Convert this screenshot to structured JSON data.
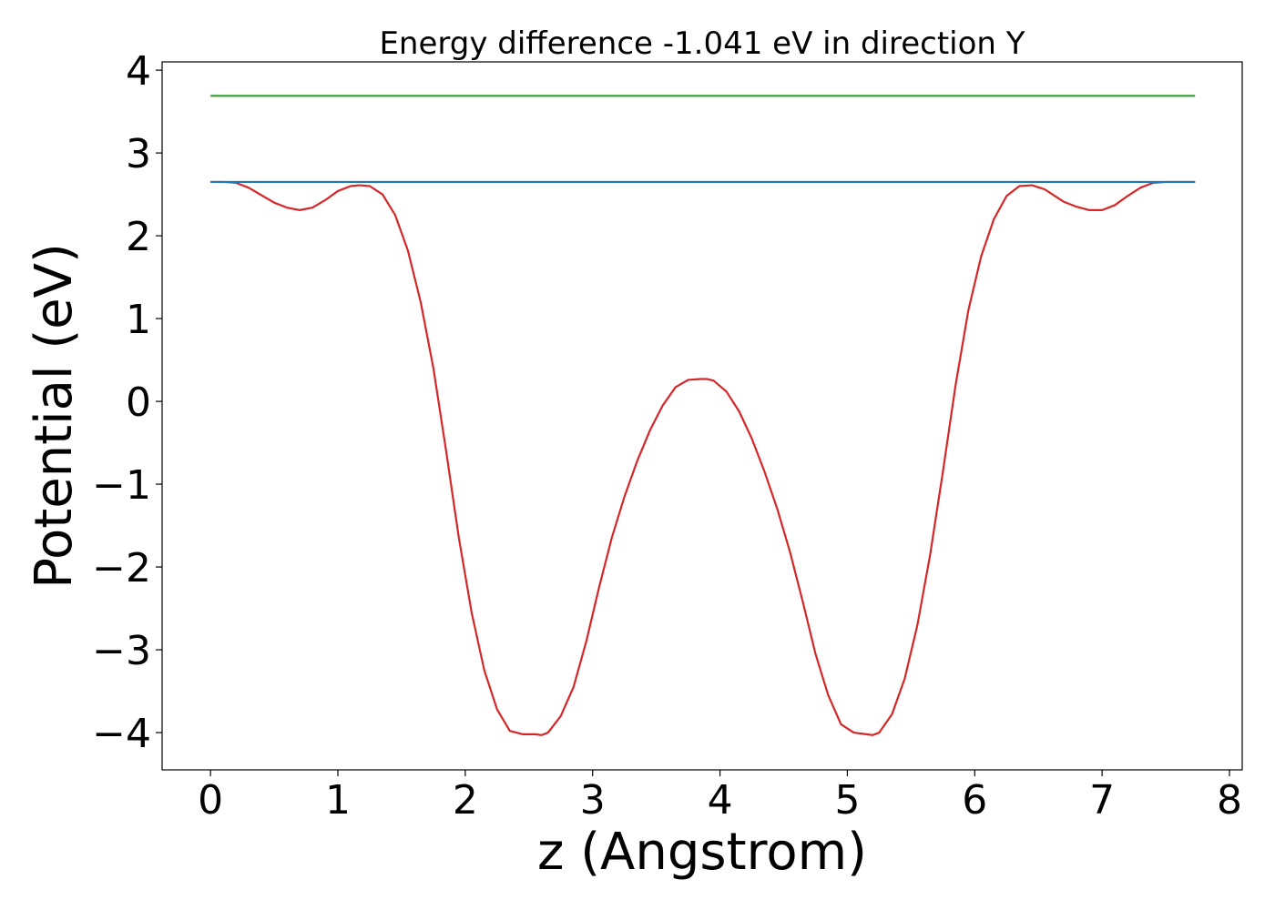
{
  "chart_data": {
    "type": "line",
    "title": "Energy difference -1.041 eV in direction Y",
    "xlabel": "z (Angstrom)",
    "ylabel": "Potential (eV)",
    "xlim": [
      -0.38,
      8.1
    ],
    "ylim": [
      -4.45,
      4.1
    ],
    "xticks": [
      0,
      1,
      2,
      3,
      4,
      5,
      6,
      7,
      8
    ],
    "yticks": [
      -4,
      -3,
      -2,
      -1,
      0,
      1,
      2,
      3,
      4
    ],
    "xtick_labels": [
      "0",
      "1",
      "2",
      "3",
      "4",
      "5",
      "6",
      "7",
      "8"
    ],
    "ytick_labels": [
      "−4",
      "−3",
      "−2",
      "−1",
      "0",
      "1",
      "2",
      "3",
      "4"
    ],
    "grid": false,
    "series": [
      {
        "color": "#d62728",
        "x": [
          0.0,
          0.1,
          0.2,
          0.3,
          0.4,
          0.5,
          0.6,
          0.7,
          0.8,
          0.9,
          1.0,
          1.1,
          1.17,
          1.25,
          1.35,
          1.45,
          1.55,
          1.65,
          1.75,
          1.85,
          1.95,
          2.05,
          2.15,
          2.25,
          2.35,
          2.45,
          2.55,
          2.6,
          2.65,
          2.75,
          2.85,
          2.95,
          3.05,
          3.15,
          3.25,
          3.35,
          3.45,
          3.55,
          3.65,
          3.75,
          3.85,
          3.9,
          3.95,
          4.05,
          4.15,
          4.25,
          4.35,
          4.45,
          4.55,
          4.65,
          4.75,
          4.85,
          4.95,
          5.05,
          5.15,
          5.2,
          5.25,
          5.35,
          5.45,
          5.55,
          5.65,
          5.75,
          5.85,
          5.95,
          6.05,
          6.15,
          6.25,
          6.35,
          6.45,
          6.55,
          6.63,
          6.7,
          6.8,
          6.9,
          7.0,
          7.1,
          7.2,
          7.3,
          7.4,
          7.5,
          7.6,
          7.7,
          7.73
        ],
        "y": [
          2.65,
          2.65,
          2.64,
          2.58,
          2.49,
          2.4,
          2.34,
          2.31,
          2.34,
          2.43,
          2.54,
          2.6,
          2.61,
          2.6,
          2.5,
          2.25,
          1.82,
          1.2,
          0.4,
          -0.6,
          -1.65,
          -2.55,
          -3.25,
          -3.72,
          -3.98,
          -4.02,
          -4.02,
          -4.03,
          -4.0,
          -3.8,
          -3.45,
          -2.9,
          -2.25,
          -1.65,
          -1.15,
          -0.72,
          -0.35,
          -0.05,
          0.17,
          0.26,
          0.27,
          0.27,
          0.25,
          0.12,
          -0.12,
          -0.45,
          -0.85,
          -1.3,
          -1.82,
          -2.42,
          -3.05,
          -3.55,
          -3.9,
          -4.0,
          -4.02,
          -4.03,
          -4.0,
          -3.78,
          -3.35,
          -2.7,
          -1.85,
          -0.85,
          0.2,
          1.1,
          1.75,
          2.2,
          2.48,
          2.6,
          2.61,
          2.56,
          2.48,
          2.41,
          2.35,
          2.31,
          2.31,
          2.37,
          2.48,
          2.58,
          2.64,
          2.65,
          2.65,
          2.65,
          2.65
        ]
      },
      {
        "color": "#1f77b4",
        "x": [
          0.0,
          7.73
        ],
        "y": [
          2.65,
          2.65
        ]
      },
      {
        "color": "#2ca02c",
        "x": [
          0.0,
          7.73
        ],
        "y": [
          3.69,
          3.69
        ]
      }
    ]
  }
}
